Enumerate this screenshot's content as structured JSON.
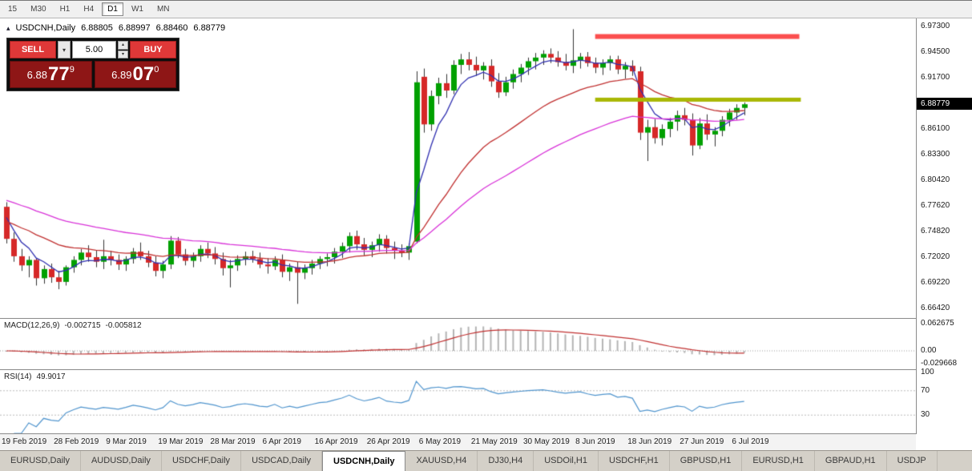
{
  "toolbar": {
    "timeframes": [
      {
        "label": "15",
        "active": false
      },
      {
        "label": "M30",
        "active": false
      },
      {
        "label": "H1",
        "active": false
      },
      {
        "label": "H4",
        "active": false
      },
      {
        "label": "D1",
        "active": true
      },
      {
        "label": "W1",
        "active": false
      },
      {
        "label": "MN",
        "active": false
      }
    ]
  },
  "chart": {
    "info": {
      "symbol": "USDCNH,Daily",
      "open": "6.88805",
      "high": "6.88997",
      "low": "6.88460",
      "close": "6.88779"
    },
    "trade_panel": {
      "sell_label": "SELL",
      "buy_label": "BUY",
      "volume": "5.00",
      "bid": {
        "big": "6.88",
        "pips": "77",
        "pt": "9"
      },
      "ask": {
        "big": "6.89",
        "pips": "07",
        "pt": "0"
      }
    },
    "price_axis": [
      "6.97300",
      "6.94500",
      "6.91700",
      "6.88900",
      "6.86100",
      "6.83300",
      "6.80420",
      "6.77620",
      "6.74820",
      "6.72020",
      "6.69220",
      "6.66420"
    ],
    "price_tag": "6.88779",
    "date_axis": [
      "19 Feb 2019",
      "28 Feb 2019",
      "9 Mar 2019",
      "19 Mar 2019",
      "28 Mar 2019",
      "6 Apr 2019",
      "16 Apr 2019",
      "26 Apr 2019",
      "6 May 2019",
      "21 May 2019",
      "30 May 2019",
      "8 Jun 2019",
      "18 Jun 2019",
      "27 Jun 2019",
      "6 Jul 2019"
    ]
  },
  "macd": {
    "label": "MACD(12,26,9)",
    "value_main": "-0.002715",
    "value_signal": "-0.005812",
    "axis": [
      "0.062675",
      "0.00",
      "-0.029668"
    ]
  },
  "rsi": {
    "label": "RSI(14)",
    "value": "49.9017",
    "axis": [
      "100",
      "70",
      "30"
    ],
    "levels": [
      70,
      30
    ],
    "period": 14
  },
  "tabs": [
    {
      "label": "EURUSD,Daily",
      "active": false
    },
    {
      "label": "AUDUSD,Daily",
      "active": false
    },
    {
      "label": "USDCHF,Daily",
      "active": false
    },
    {
      "label": "USDCAD,Daily",
      "active": false
    },
    {
      "label": "USDCNH,Daily",
      "active": true
    },
    {
      "label": "XAUUSD,H4",
      "active": false
    },
    {
      "label": "DJ30,H4",
      "active": false
    },
    {
      "label": "USDOil,H1",
      "active": false
    },
    {
      "label": "USDCHF,H1",
      "active": false
    },
    {
      "label": "GBPUSD,H1",
      "active": false
    },
    {
      "label": "EURUSD,H1",
      "active": false
    },
    {
      "label": "GBPAUD,H1",
      "active": false
    },
    {
      "label": "USDJP",
      "active": false
    }
  ],
  "colors": {
    "bull": "#00a000",
    "bear": "#d62828",
    "wick": "#333333",
    "ma_fast": "#3030b0",
    "ma_mid": "#c03030",
    "ma_slow": "#d832d8",
    "macd_hist": "#b4b4b4",
    "macd_signal": "#c03030",
    "rsi": "#4f94cd",
    "resistance_band": "#fb4f4f",
    "support_line": "#a9b804",
    "price_tag_bg": "#000000",
    "trade_button_red": "#df3838",
    "quote_box_red": "#8e1616"
  },
  "chart_data": {
    "type": "candlestick",
    "title": "USDCNH,Daily",
    "timeframe": "D1",
    "y_axis_labels": [
      6.973,
      6.945,
      6.917,
      6.889,
      6.861,
      6.833,
      6.8042,
      6.7762,
      6.7482,
      6.7202,
      6.6922,
      6.6642
    ],
    "x_axis_labels": [
      "19 Feb 2019",
      "28 Feb 2019",
      "9 Mar 2019",
      "19 Mar 2019",
      "28 Mar 2019",
      "6 Apr 2019",
      "16 Apr 2019",
      "26 Apr 2019",
      "6 May 2019",
      "21 May 2019",
      "30 May 2019",
      "8 Jun 2019",
      "18 Jun 2019",
      "27 Jun 2019",
      "6 Jul 2019"
    ],
    "last_close": 6.88779,
    "ohlc": [
      [
        6.776,
        6.781,
        6.736,
        6.741
      ],
      [
        6.741,
        6.748,
        6.716,
        6.722
      ],
      [
        6.722,
        6.73,
        6.706,
        6.712
      ],
      [
        6.712,
        6.722,
        6.699,
        6.718
      ],
      [
        6.718,
        6.72,
        6.69,
        6.698
      ],
      [
        6.698,
        6.712,
        6.692,
        6.708
      ],
      [
        6.708,
        6.714,
        6.693,
        6.699
      ],
      [
        6.699,
        6.706,
        6.686,
        6.694
      ],
      [
        6.694,
        6.712,
        6.69,
        6.71
      ],
      [
        6.71,
        6.722,
        6.704,
        6.718
      ],
      [
        6.718,
        6.73,
        6.712,
        6.726
      ],
      [
        6.726,
        6.734,
        6.716,
        6.721
      ],
      [
        6.721,
        6.728,
        6.71,
        6.716
      ],
      [
        6.716,
        6.74,
        6.708,
        6.722
      ],
      [
        6.722,
        6.728,
        6.712,
        6.718
      ],
      [
        6.718,
        6.724,
        6.707,
        6.713
      ],
      [
        6.713,
        6.722,
        6.706,
        6.719
      ],
      [
        6.719,
        6.731,
        6.714,
        6.727
      ],
      [
        6.727,
        6.737,
        6.718,
        6.722
      ],
      [
        6.722,
        6.728,
        6.71,
        6.715
      ],
      [
        6.715,
        6.722,
        6.7,
        6.706
      ],
      [
        6.706,
        6.717,
        6.698,
        6.713
      ],
      [
        6.713,
        6.744,
        6.708,
        6.739
      ],
      [
        6.739,
        6.743,
        6.72,
        6.724
      ],
      [
        6.724,
        6.73,
        6.712,
        6.717
      ],
      [
        6.717,
        6.726,
        6.71,
        6.722
      ],
      [
        6.722,
        6.734,
        6.716,
        6.73
      ],
      [
        6.73,
        6.737,
        6.72,
        6.725
      ],
      [
        6.725,
        6.732,
        6.713,
        6.719
      ],
      [
        6.719,
        6.726,
        6.701,
        6.709
      ],
      [
        6.709,
        6.718,
        6.688,
        6.712
      ],
      [
        6.712,
        6.723,
        6.706,
        6.719
      ],
      [
        6.719,
        6.727,
        6.712,
        6.722
      ],
      [
        6.722,
        6.728,
        6.715,
        6.719
      ],
      [
        6.719,
        6.726,
        6.709,
        6.713
      ],
      [
        6.713,
        6.72,
        6.703,
        6.711
      ],
      [
        6.711,
        6.722,
        6.707,
        6.718
      ],
      [
        6.718,
        6.724,
        6.699,
        6.705
      ],
      [
        6.705,
        6.714,
        6.695,
        6.71
      ],
      [
        6.71,
        6.716,
        6.67,
        6.704
      ],
      [
        6.704,
        6.713,
        6.697,
        6.709
      ],
      [
        6.709,
        6.718,
        6.702,
        6.714
      ],
      [
        6.714,
        6.722,
        6.708,
        6.719
      ],
      [
        6.719,
        6.725,
        6.711,
        6.721
      ],
      [
        6.721,
        6.731,
        6.714,
        6.727
      ],
      [
        6.727,
        6.737,
        6.72,
        6.733
      ],
      [
        6.733,
        6.748,
        6.726,
        6.744
      ],
      [
        6.744,
        6.75,
        6.729,
        6.735
      ],
      [
        6.735,
        6.742,
        6.723,
        6.729
      ],
      [
        6.729,
        6.738,
        6.721,
        6.734
      ],
      [
        6.734,
        6.746,
        6.727,
        6.741
      ],
      [
        6.741,
        6.745,
        6.725,
        6.731
      ],
      [
        6.731,
        6.738,
        6.719,
        6.728
      ],
      [
        6.728,
        6.735,
        6.721,
        6.726
      ],
      [
        6.726,
        6.736,
        6.718,
        6.733
      ],
      [
        6.738,
        6.924,
        6.736,
        6.912
      ],
      [
        6.918,
        6.927,
        6.857,
        6.866
      ],
      [
        6.866,
        6.903,
        6.859,
        6.897
      ],
      [
        6.897,
        6.917,
        6.888,
        6.911
      ],
      [
        6.911,
        6.921,
        6.895,
        6.903
      ],
      [
        6.903,
        6.936,
        6.899,
        6.931
      ],
      [
        6.931,
        6.943,
        6.921,
        6.937
      ],
      [
        6.937,
        6.945,
        6.925,
        6.931
      ],
      [
        6.931,
        6.94,
        6.919,
        6.925
      ],
      [
        6.925,
        6.934,
        6.915,
        6.93
      ],
      [
        6.93,
        6.937,
        6.907,
        6.913
      ],
      [
        6.913,
        6.922,
        6.895,
        6.901
      ],
      [
        6.901,
        6.918,
        6.897,
        6.912
      ],
      [
        6.912,
        6.926,
        6.905,
        6.921
      ],
      [
        6.921,
        6.932,
        6.912,
        6.928
      ],
      [
        6.928,
        6.939,
        6.92,
        6.935
      ],
      [
        6.935,
        6.944,
        6.926,
        6.939
      ],
      [
        6.939,
        6.947,
        6.931,
        6.943
      ],
      [
        6.943,
        6.949,
        6.933,
        6.939
      ],
      [
        6.939,
        6.946,
        6.929,
        6.934
      ],
      [
        6.934,
        6.943,
        6.925,
        6.93
      ],
      [
        6.93,
        6.97,
        6.922,
        6.936
      ],
      [
        6.936,
        6.944,
        6.927,
        6.94
      ],
      [
        6.94,
        6.945,
        6.929,
        6.933
      ],
      [
        6.933,
        6.939,
        6.922,
        6.928
      ],
      [
        6.928,
        6.937,
        6.92,
        6.933
      ],
      [
        6.933,
        6.941,
        6.925,
        6.937
      ],
      [
        6.937,
        6.941,
        6.921,
        6.926
      ],
      [
        6.926,
        6.934,
        6.916,
        6.93
      ],
      [
        6.93,
        6.936,
        6.919,
        6.924
      ],
      [
        6.924,
        6.929,
        6.849,
        6.857
      ],
      [
        6.857,
        6.871,
        6.826,
        6.863
      ],
      [
        6.863,
        6.872,
        6.845,
        6.851
      ],
      [
        6.851,
        6.866,
        6.843,
        6.861
      ],
      [
        6.861,
        6.873,
        6.852,
        6.869
      ],
      [
        6.869,
        6.881,
        6.859,
        6.876
      ],
      [
        6.876,
        6.884,
        6.865,
        6.871
      ],
      [
        6.871,
        6.878,
        6.832,
        6.843
      ],
      [
        6.843,
        6.873,
        6.839,
        6.867
      ],
      [
        6.867,
        6.877,
        6.849,
        6.855
      ],
      [
        6.855,
        6.863,
        6.842,
        6.859
      ],
      [
        6.859,
        6.875,
        6.853,
        6.871
      ],
      [
        6.871,
        6.883,
        6.864,
        6.879
      ],
      [
        6.879,
        6.888,
        6.871,
        6.884
      ],
      [
        6.884,
        6.89,
        6.876,
        6.888
      ]
    ],
    "moving_averages": [
      {
        "period": 5,
        "color": "#3030b0",
        "seed": 6.776
      },
      {
        "period": 22,
        "color": "#c03030",
        "seed": 6.762
      },
      {
        "period": 45,
        "color": "#d832d8",
        "seed": 6.785
      }
    ],
    "annotations": [
      {
        "name": "resistance-band",
        "type": "horizontal-band",
        "price": 6.962,
        "thickness": 6,
        "from_index": 79,
        "to_index": 106.4,
        "color": "#fb4f4f"
      },
      {
        "name": "support-line",
        "type": "horizontal-line",
        "price": 6.893,
        "thickness": 5,
        "from_index": 79,
        "to_index": 106.6,
        "color": "#a9b804"
      }
    ],
    "indicators": [
      {
        "type": "MACD",
        "fast": 12,
        "slow": 26,
        "signal": 9,
        "current_main": -0.002715,
        "current_signal": -0.005812,
        "axis_max": 0.062675,
        "axis_min": -0.029668
      },
      {
        "type": "RSI",
        "period": 14,
        "current": 49.9017,
        "levels": [
          70,
          30
        ],
        "range": [
          0,
          100
        ]
      }
    ]
  }
}
